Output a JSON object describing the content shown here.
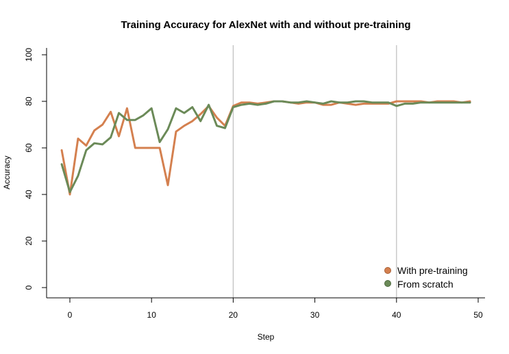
{
  "chart_data": {
    "type": "line",
    "title": "Training Accuracy for AlexNet with and without pre-training",
    "xlabel": "Step",
    "ylabel": "Accuracy",
    "xlim": [
      -1,
      49
    ],
    "ylim": [
      0,
      100
    ],
    "xticks": [
      0,
      10,
      20,
      30,
      40,
      50
    ],
    "yticks": [
      0,
      20,
      40,
      60,
      80,
      100
    ],
    "vlines": [
      20,
      40
    ],
    "grid": false,
    "legend_position": "bottom-right",
    "x": [
      -1,
      0,
      1,
      2,
      3,
      4,
      5,
      6,
      7,
      8,
      9,
      10,
      11,
      12,
      13,
      14,
      15,
      16,
      17,
      18,
      19,
      20,
      21,
      22,
      23,
      24,
      25,
      26,
      27,
      28,
      29,
      30,
      31,
      32,
      33,
      34,
      35,
      36,
      37,
      38,
      39,
      40,
      41,
      42,
      43,
      44,
      45,
      46,
      47,
      48,
      49
    ],
    "series": [
      {
        "name": "With pre-training",
        "color": "#d4804f",
        "values": [
          59,
          40,
          64,
          61,
          67.5,
          70,
          75.5,
          65,
          77,
          60,
          60,
          60,
          60,
          44,
          67,
          69.5,
          71.5,
          74.5,
          78,
          73,
          69.5,
          78,
          79.5,
          79.5,
          79,
          79.5,
          80,
          80,
          79.5,
          79,
          79.5,
          79.5,
          78.5,
          78.5,
          79.5,
          79,
          78.5,
          79,
          79,
          79,
          79,
          80,
          80,
          80,
          80,
          79.5,
          80,
          80,
          80,
          79.5,
          80
        ]
      },
      {
        "name": "From scratch",
        "color": "#6b8a58",
        "values": [
          53,
          41,
          48,
          59,
          62,
          61.5,
          64.5,
          75,
          72,
          72,
          74,
          77,
          62.5,
          68,
          77,
          75,
          77.5,
          71.5,
          78.5,
          69.5,
          68.5,
          77.5,
          78.5,
          79,
          78.5,
          79,
          80,
          80,
          79.5,
          79.5,
          80,
          79.5,
          79,
          80,
          79.5,
          79.5,
          80,
          80,
          79.5,
          79.5,
          79.5,
          78,
          79,
          79,
          79.5,
          79.5,
          79.5,
          79.5,
          79.5,
          79.5,
          79.5
        ]
      }
    ]
  }
}
